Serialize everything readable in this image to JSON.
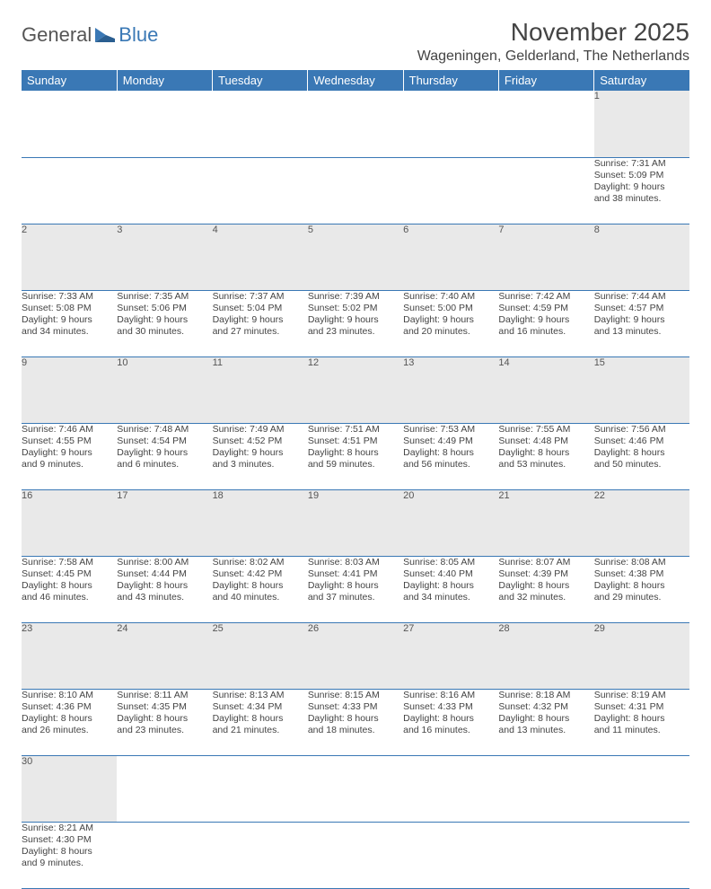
{
  "logo": {
    "part1": "General",
    "part2": "Blue"
  },
  "title": "November 2025",
  "location": "Wageningen, Gelderland, The Netherlands",
  "dows": [
    "Sunday",
    "Monday",
    "Tuesday",
    "Wednesday",
    "Thursday",
    "Friday",
    "Saturday"
  ],
  "colors": {
    "header_bg": "#3a78b5",
    "header_fg": "#ffffff",
    "daynum_bg": "#e9e9e9",
    "border": "#3a78b5",
    "text": "#444444"
  },
  "weeks": [
    [
      null,
      null,
      null,
      null,
      null,
      null,
      {
        "n": "1",
        "sr": "Sunrise: 7:31 AM",
        "ss": "Sunset: 5:09 PM",
        "d1": "Daylight: 9 hours",
        "d2": "and 38 minutes."
      }
    ],
    [
      {
        "n": "2",
        "sr": "Sunrise: 7:33 AM",
        "ss": "Sunset: 5:08 PM",
        "d1": "Daylight: 9 hours",
        "d2": "and 34 minutes."
      },
      {
        "n": "3",
        "sr": "Sunrise: 7:35 AM",
        "ss": "Sunset: 5:06 PM",
        "d1": "Daylight: 9 hours",
        "d2": "and 30 minutes."
      },
      {
        "n": "4",
        "sr": "Sunrise: 7:37 AM",
        "ss": "Sunset: 5:04 PM",
        "d1": "Daylight: 9 hours",
        "d2": "and 27 minutes."
      },
      {
        "n": "5",
        "sr": "Sunrise: 7:39 AM",
        "ss": "Sunset: 5:02 PM",
        "d1": "Daylight: 9 hours",
        "d2": "and 23 minutes."
      },
      {
        "n": "6",
        "sr": "Sunrise: 7:40 AM",
        "ss": "Sunset: 5:00 PM",
        "d1": "Daylight: 9 hours",
        "d2": "and 20 minutes."
      },
      {
        "n": "7",
        "sr": "Sunrise: 7:42 AM",
        "ss": "Sunset: 4:59 PM",
        "d1": "Daylight: 9 hours",
        "d2": "and 16 minutes."
      },
      {
        "n": "8",
        "sr": "Sunrise: 7:44 AM",
        "ss": "Sunset: 4:57 PM",
        "d1": "Daylight: 9 hours",
        "d2": "and 13 minutes."
      }
    ],
    [
      {
        "n": "9",
        "sr": "Sunrise: 7:46 AM",
        "ss": "Sunset: 4:55 PM",
        "d1": "Daylight: 9 hours",
        "d2": "and 9 minutes."
      },
      {
        "n": "10",
        "sr": "Sunrise: 7:48 AM",
        "ss": "Sunset: 4:54 PM",
        "d1": "Daylight: 9 hours",
        "d2": "and 6 minutes."
      },
      {
        "n": "11",
        "sr": "Sunrise: 7:49 AM",
        "ss": "Sunset: 4:52 PM",
        "d1": "Daylight: 9 hours",
        "d2": "and 3 minutes."
      },
      {
        "n": "12",
        "sr": "Sunrise: 7:51 AM",
        "ss": "Sunset: 4:51 PM",
        "d1": "Daylight: 8 hours",
        "d2": "and 59 minutes."
      },
      {
        "n": "13",
        "sr": "Sunrise: 7:53 AM",
        "ss": "Sunset: 4:49 PM",
        "d1": "Daylight: 8 hours",
        "d2": "and 56 minutes."
      },
      {
        "n": "14",
        "sr": "Sunrise: 7:55 AM",
        "ss": "Sunset: 4:48 PM",
        "d1": "Daylight: 8 hours",
        "d2": "and 53 minutes."
      },
      {
        "n": "15",
        "sr": "Sunrise: 7:56 AM",
        "ss": "Sunset: 4:46 PM",
        "d1": "Daylight: 8 hours",
        "d2": "and 50 minutes."
      }
    ],
    [
      {
        "n": "16",
        "sr": "Sunrise: 7:58 AM",
        "ss": "Sunset: 4:45 PM",
        "d1": "Daylight: 8 hours",
        "d2": "and 46 minutes."
      },
      {
        "n": "17",
        "sr": "Sunrise: 8:00 AM",
        "ss": "Sunset: 4:44 PM",
        "d1": "Daylight: 8 hours",
        "d2": "and 43 minutes."
      },
      {
        "n": "18",
        "sr": "Sunrise: 8:02 AM",
        "ss": "Sunset: 4:42 PM",
        "d1": "Daylight: 8 hours",
        "d2": "and 40 minutes."
      },
      {
        "n": "19",
        "sr": "Sunrise: 8:03 AM",
        "ss": "Sunset: 4:41 PM",
        "d1": "Daylight: 8 hours",
        "d2": "and 37 minutes."
      },
      {
        "n": "20",
        "sr": "Sunrise: 8:05 AM",
        "ss": "Sunset: 4:40 PM",
        "d1": "Daylight: 8 hours",
        "d2": "and 34 minutes."
      },
      {
        "n": "21",
        "sr": "Sunrise: 8:07 AM",
        "ss": "Sunset: 4:39 PM",
        "d1": "Daylight: 8 hours",
        "d2": "and 32 minutes."
      },
      {
        "n": "22",
        "sr": "Sunrise: 8:08 AM",
        "ss": "Sunset: 4:38 PM",
        "d1": "Daylight: 8 hours",
        "d2": "and 29 minutes."
      }
    ],
    [
      {
        "n": "23",
        "sr": "Sunrise: 8:10 AM",
        "ss": "Sunset: 4:36 PM",
        "d1": "Daylight: 8 hours",
        "d2": "and 26 minutes."
      },
      {
        "n": "24",
        "sr": "Sunrise: 8:11 AM",
        "ss": "Sunset: 4:35 PM",
        "d1": "Daylight: 8 hours",
        "d2": "and 23 minutes."
      },
      {
        "n": "25",
        "sr": "Sunrise: 8:13 AM",
        "ss": "Sunset: 4:34 PM",
        "d1": "Daylight: 8 hours",
        "d2": "and 21 minutes."
      },
      {
        "n": "26",
        "sr": "Sunrise: 8:15 AM",
        "ss": "Sunset: 4:33 PM",
        "d1": "Daylight: 8 hours",
        "d2": "and 18 minutes."
      },
      {
        "n": "27",
        "sr": "Sunrise: 8:16 AM",
        "ss": "Sunset: 4:33 PM",
        "d1": "Daylight: 8 hours",
        "d2": "and 16 minutes."
      },
      {
        "n": "28",
        "sr": "Sunrise: 8:18 AM",
        "ss": "Sunset: 4:32 PM",
        "d1": "Daylight: 8 hours",
        "d2": "and 13 minutes."
      },
      {
        "n": "29",
        "sr": "Sunrise: 8:19 AM",
        "ss": "Sunset: 4:31 PM",
        "d1": "Daylight: 8 hours",
        "d2": "and 11 minutes."
      }
    ],
    [
      {
        "n": "30",
        "sr": "Sunrise: 8:21 AM",
        "ss": "Sunset: 4:30 PM",
        "d1": "Daylight: 8 hours",
        "d2": "and 9 minutes."
      },
      null,
      null,
      null,
      null,
      null,
      null
    ]
  ]
}
